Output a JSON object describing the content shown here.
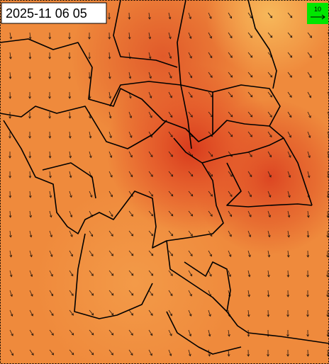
{
  "header": {
    "title": "2025-11 06 05"
  },
  "legend": {
    "label": "10"
  }
}
